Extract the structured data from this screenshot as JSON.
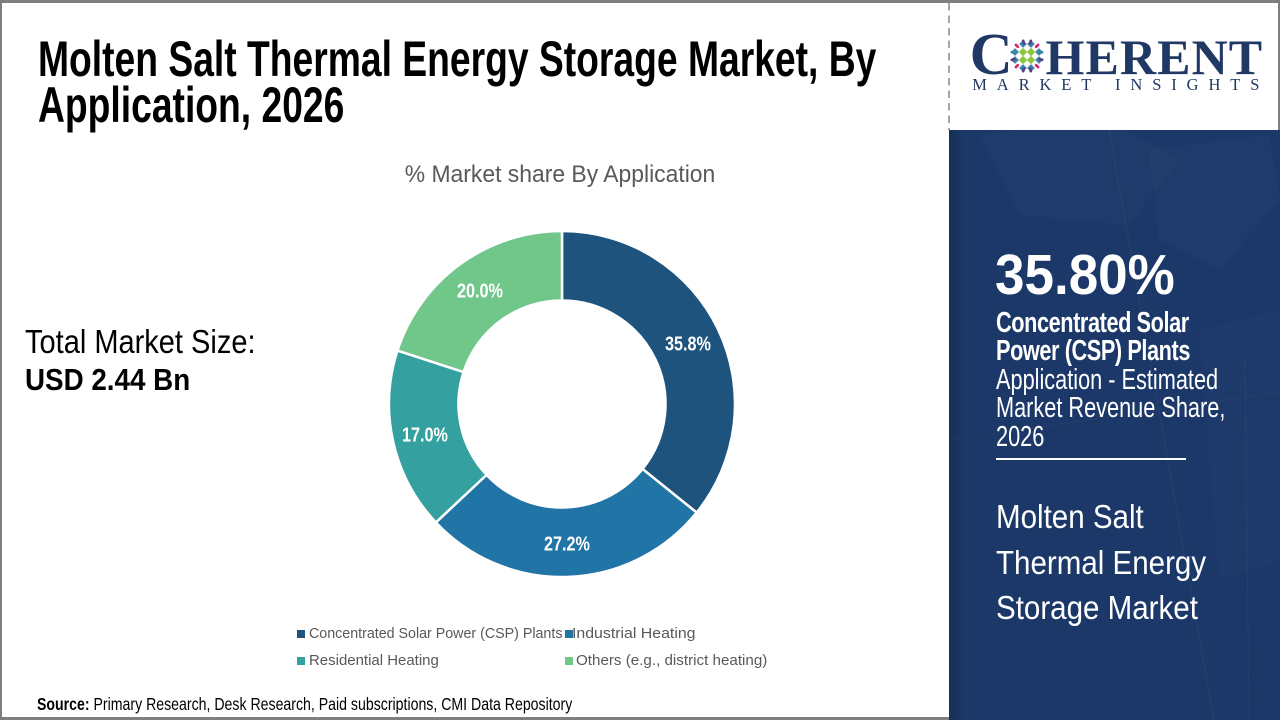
{
  "header": {
    "title": "Molten Salt Thermal Energy Storage Market, By\nApplication, 2026"
  },
  "chart_data": {
    "type": "donut",
    "title": "% Market share By Application",
    "unit": "%",
    "start_angle_deg": 0,
    "direction": "clockwise",
    "inner_radius_ratio": 0.6,
    "legend_position": "bottom",
    "center": {
      "x": 562,
      "y": 404
    },
    "outer_radius": 173,
    "inner_radius": 103.5,
    "label_radius": 140,
    "series": [
      {
        "name": "Concentrated Solar Power (CSP) Plants",
        "value": 35.8,
        "label": "35.8%",
        "color": "#1d537d"
      },
      {
        "name": "Industrial Heating",
        "value": 27.2,
        "label": "27.2%",
        "color": "#2174a6"
      },
      {
        "name": "Residential Heating",
        "value": 17.0,
        "label": "17.0%",
        "color": "#34a0a0"
      },
      {
        "name": "Others (e.g., district heating)",
        "value": 20.0,
        "label": "20.0%",
        "color": "#70c789"
      }
    ]
  },
  "total_market": {
    "label": "Total Market Size:",
    "value": "USD 2.44 Bn"
  },
  "source": {
    "prefix": "Source:",
    "text": " Primary Research, Desk Research, Paid subscriptions, CMI Data Repository"
  },
  "logo": {
    "brand_first_letter": "C",
    "brand_rest": "HERENT",
    "tagline": "MARKET INSIGHTS",
    "navy": "#1f3864",
    "globe_colors": {
      "green": "#8dc63f",
      "teal": "#3b87a5",
      "pink": "#d6246c",
      "purple": "#5b3a88"
    }
  },
  "side_panel": {
    "background": "#1b3869",
    "share_value": "35.80%",
    "share_label_bold": "Concentrated Solar\nPower (CSP) Plants",
    "share_label_rest": "Application - Estimated\nMarket Revenue Share,\n2026",
    "report_title": "Molten Salt\nThermal Energy\nStorage Market"
  },
  "frame": {
    "border_color": "#7f7f7f",
    "divider_color": "#a6a6a6"
  }
}
